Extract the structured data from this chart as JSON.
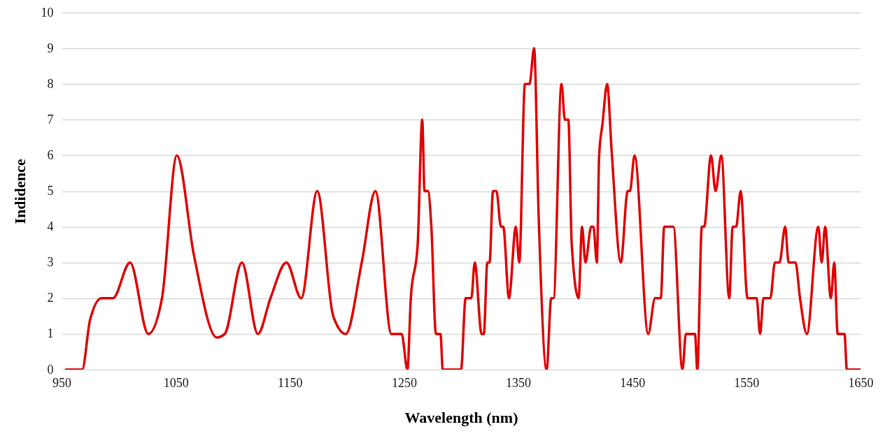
{
  "chart_data": {
    "type": "line",
    "xlabel": "Wavelength (nm)",
    "ylabel": "Indidence",
    "xlim": [
      950,
      1650
    ],
    "xticks": [
      950,
      1050,
      1150,
      1250,
      1350,
      1450,
      1550,
      1650
    ],
    "ylim": [
      0,
      10
    ],
    "yticks": [
      0,
      1,
      2,
      3,
      4,
      5,
      6,
      7,
      8,
      9,
      10
    ],
    "grid": "y",
    "marker": "none",
    "line_style": "solid",
    "series": [
      {
        "color": "#e00000",
        "x": [
          954,
          968,
          975,
          985,
          995,
          1010,
          1026,
          1038,
          1051,
          1066,
          1086,
          1093,
          1108,
          1122,
          1133,
          1147,
          1160,
          1174,
          1188,
          1199,
          1213,
          1225,
          1239,
          1248,
          1253,
          1256,
          1262,
          1266,
          1268,
          1271,
          1274,
          1278,
          1282,
          1284,
          1300,
          1304,
          1309,
          1312,
          1318,
          1320,
          1323,
          1325,
          1328,
          1331,
          1335,
          1337,
          1342,
          1348,
          1351,
          1356,
          1360,
          1364,
          1368,
          1375,
          1379,
          1381,
          1388,
          1391,
          1394,
          1397,
          1403,
          1406,
          1409,
          1414,
          1416,
          1419,
          1421,
          1424,
          1428,
          1432,
          1440,
          1446,
          1448,
          1452,
          1464,
          1470,
          1475,
          1478,
          1486,
          1494,
          1497,
          1505,
          1507,
          1511,
          1513,
          1519,
          1523,
          1528,
          1535,
          1538,
          1541,
          1545,
          1551,
          1559,
          1562,
          1565,
          1571,
          1575,
          1579,
          1584,
          1587,
          1593,
          1597,
          1603,
          1613,
          1616,
          1619,
          1624,
          1627,
          1630,
          1636,
          1638,
          1650
        ],
        "values": [
          0,
          0,
          1.4,
          2,
          2,
          3,
          1,
          2,
          6,
          3.2,
          0.9,
          1,
          3,
          1,
          2,
          3,
          2,
          5,
          1.5,
          1,
          3,
          5,
          1,
          1,
          0,
          2,
          3.5,
          7,
          5,
          5,
          4,
          1,
          1,
          0,
          0,
          2,
          2,
          3,
          1,
          1,
          3,
          3,
          5,
          5,
          4,
          4,
          2,
          4,
          3,
          8,
          8,
          9,
          4.3,
          0,
          2,
          2,
          8,
          7,
          7,
          3.5,
          2,
          4,
          3,
          4,
          4,
          3,
          6,
          6.9,
          8,
          6.1,
          3,
          5,
          5,
          6,
          1,
          2,
          2,
          4,
          4,
          0,
          1,
          1,
          0,
          4,
          4,
          6,
          5,
          6,
          2,
          4,
          4,
          5,
          2,
          2,
          1,
          2,
          2,
          3,
          3,
          4,
          3,
          3,
          2,
          1,
          4,
          3,
          4,
          2,
          3,
          1,
          1,
          0,
          0
        ]
      }
    ]
  }
}
